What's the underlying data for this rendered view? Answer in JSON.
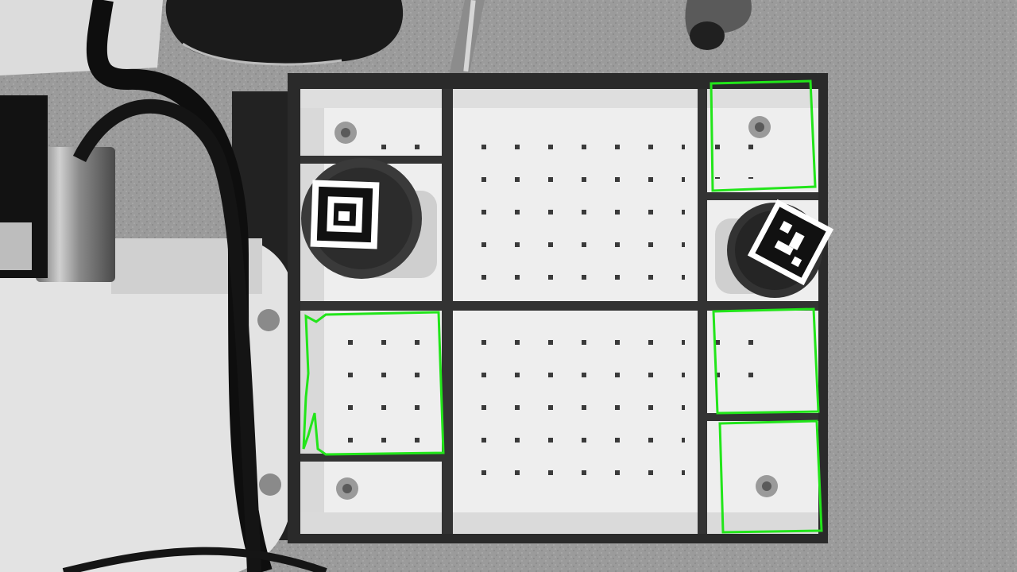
{
  "scene": {
    "description_free": true,
    "colors": {
      "floor": "#9a9a9a",
      "tray_white": "#efefef",
      "tray_shadow": "#d8d8d8",
      "frame_dark": "#2c2c2c",
      "robot_white": "#e6e6e6",
      "cable": "#0f0f0f",
      "highlight": "#22e51a"
    }
  },
  "overlays": {
    "highlight_color": "#22e51a",
    "regions": [
      {
        "name": "cell-top-right"
      },
      {
        "name": "cell-mid-left"
      },
      {
        "name": "cell-mid-right"
      },
      {
        "name": "cell-bottom-right"
      }
    ]
  },
  "markers": [
    {
      "name": "aruco-marker-left"
    },
    {
      "name": "aruco-marker-right"
    }
  ]
}
